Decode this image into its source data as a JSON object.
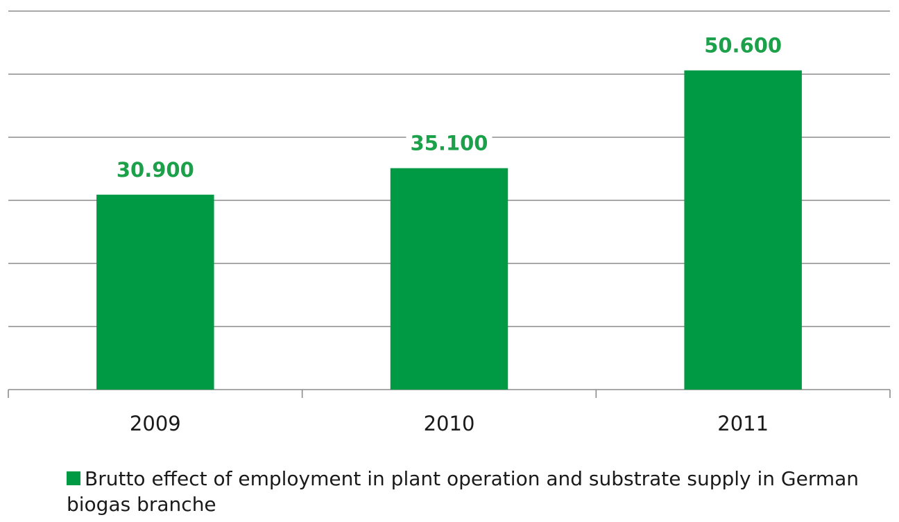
{
  "chart_data": {
    "type": "bar",
    "title": "",
    "xlabel": "",
    "ylabel": "",
    "categories": [
      "2009",
      "2010",
      "2011"
    ],
    "series": [
      {
        "name": "Brutto effect of employment in plant operation and substrate supply in German biogas branche",
        "values": [
          30900,
          35100,
          50600
        ],
        "labels": [
          "30.900",
          "35.100",
          "50.600"
        ],
        "color": "#009a44"
      }
    ],
    "ylim": [
      0,
      60000
    ],
    "grid": true,
    "legend_position": "bottom",
    "label_color": "#1ca04a"
  }
}
